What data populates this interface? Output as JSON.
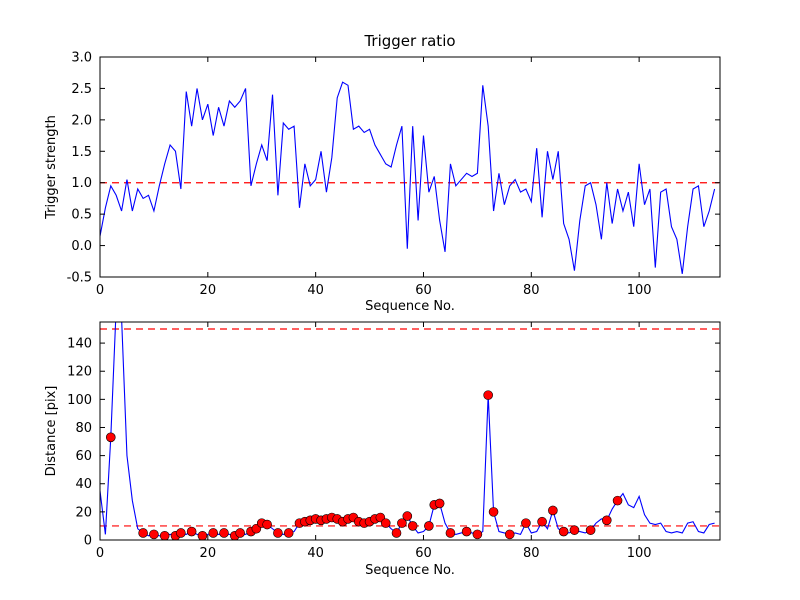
{
  "figure": {
    "background": "#ffffff",
    "line_color": "#0000ff",
    "threshold_color": "#ff0000",
    "marker_color": "#ff0000"
  },
  "chart_data": [
    {
      "type": "line",
      "title": "Trigger ratio",
      "xlabel": "Sequence No.",
      "ylabel": "Trigger strength",
      "xlim": [
        0,
        115
      ],
      "ylim": [
        -0.5,
        3.0
      ],
      "grid": false,
      "x_is_index": true,
      "xticks": [
        0,
        20,
        40,
        60,
        80,
        100
      ],
      "xtick_labels": [
        "0",
        "20",
        "40",
        "60",
        "80",
        "100"
      ],
      "yticks": [
        -0.5,
        0.0,
        0.5,
        1.0,
        1.5,
        2.0,
        2.5,
        3.0
      ],
      "ytick_labels": [
        "-0.5",
        "0.0",
        "0.5",
        "1.0",
        "1.5",
        "2.0",
        "2.5",
        "3.0"
      ],
      "hlines": [
        {
          "y": 1.0,
          "color": "#ff0000",
          "style": "dashed"
        }
      ],
      "series": [
        {
          "name": "trigger-strength",
          "color": "#0000ff",
          "y": [
            0.15,
            0.6,
            0.95,
            0.8,
            0.55,
            1.05,
            0.55,
            0.9,
            0.75,
            0.8,
            0.55,
            0.95,
            1.3,
            1.6,
            1.5,
            0.9,
            2.45,
            1.9,
            2.5,
            2.0,
            2.25,
            1.75,
            2.2,
            1.9,
            2.3,
            2.2,
            2.3,
            2.5,
            0.95,
            1.3,
            1.6,
            1.35,
            2.4,
            0.8,
            1.95,
            1.85,
            1.9,
            0.6,
            1.3,
            0.95,
            1.05,
            1.5,
            0.85,
            1.4,
            2.35,
            2.6,
            2.55,
            1.85,
            1.9,
            1.8,
            1.85,
            1.6,
            1.45,
            1.3,
            1.25,
            1.6,
            1.9,
            -0.05,
            1.9,
            0.4,
            1.75,
            0.85,
            1.1,
            0.4,
            -0.1,
            1.3,
            0.95,
            1.05,
            1.15,
            1.1,
            1.15,
            2.55,
            1.9,
            0.55,
            1.15,
            0.65,
            0.95,
            1.05,
            0.85,
            0.9,
            0.7,
            1.55,
            0.45,
            1.5,
            1.05,
            1.5,
            0.35,
            0.1,
            -0.4,
            0.4,
            0.95,
            1.0,
            0.65,
            0.1,
            1.0,
            0.35,
            0.9,
            0.55,
            0.85,
            0.3,
            1.3,
            0.65,
            0.9,
            -0.35,
            0.85,
            0.9,
            0.3,
            0.1,
            -0.45,
            0.3,
            0.9,
            0.95,
            0.3,
            0.55,
            0.9
          ]
        }
      ]
    },
    {
      "type": "line",
      "title": "",
      "xlabel": "Sequence No.",
      "ylabel": "Distance [pix]",
      "xlim": [
        0,
        115
      ],
      "ylim": [
        0,
        155
      ],
      "grid": false,
      "x_is_index": true,
      "xticks": [
        0,
        20,
        40,
        60,
        80,
        100
      ],
      "xtick_labels": [
        "0",
        "20",
        "40",
        "60",
        "80",
        "100"
      ],
      "yticks": [
        0,
        20,
        40,
        60,
        80,
        100,
        120,
        140
      ],
      "ytick_labels": [
        "0",
        "20",
        "40",
        "60",
        "80",
        "100",
        "120",
        "140"
      ],
      "hlines": [
        {
          "y": 150,
          "color": "#ff0000",
          "style": "dashed"
        },
        {
          "y": 10,
          "color": "#ff0000",
          "style": "dashed"
        }
      ],
      "series": [
        {
          "name": "distance",
          "color": "#0000ff",
          "y": [
            35,
            4,
            73,
            165,
            158,
            60,
            28,
            8,
            5,
            3,
            4,
            3,
            3,
            4,
            3,
            5,
            4,
            6,
            4,
            3,
            4,
            5,
            4,
            5,
            4,
            3,
            5,
            4,
            6,
            8,
            12,
            11,
            8,
            5,
            4,
            5,
            6,
            12,
            13,
            14,
            15,
            14,
            15,
            16,
            15,
            13,
            15,
            16,
            13,
            12,
            13,
            15,
            16,
            12,
            8,
            5,
            12,
            17,
            10,
            5,
            6,
            10,
            25,
            26,
            12,
            5,
            4,
            5,
            6,
            5,
            4,
            6,
            103,
            20,
            6,
            5,
            4,
            5,
            4,
            12,
            5,
            6,
            13,
            8,
            21,
            8,
            6,
            5,
            7,
            6,
            5,
            7,
            12,
            15,
            14,
            22,
            28,
            33,
            25,
            23,
            31,
            18,
            12,
            11,
            12,
            6,
            5,
            6,
            5,
            12,
            13,
            6,
            5,
            11,
            12
          ]
        }
      ],
      "markers": {
        "color": "#ff0000",
        "indices": [
          2,
          8,
          10,
          12,
          14,
          15,
          17,
          19,
          21,
          23,
          25,
          26,
          28,
          29,
          30,
          31,
          33,
          35,
          37,
          38,
          39,
          40,
          41,
          42,
          43,
          44,
          45,
          46,
          47,
          48,
          49,
          50,
          51,
          52,
          53,
          55,
          56,
          57,
          58,
          61,
          62,
          63,
          65,
          68,
          70,
          72,
          73,
          76,
          79,
          82,
          84,
          86,
          88,
          91,
          94,
          96
        ]
      }
    }
  ]
}
